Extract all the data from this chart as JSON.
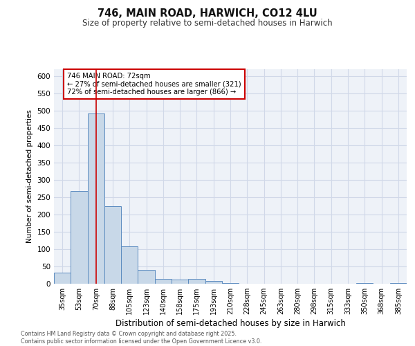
{
  "title": "746, MAIN ROAD, HARWICH, CO12 4LU",
  "subtitle": "Size of property relative to semi-detached houses in Harwich",
  "xlabel": "Distribution of semi-detached houses by size in Harwich",
  "ylabel": "Number of semi-detached properties",
  "categories": [
    "35sqm",
    "53sqm",
    "70sqm",
    "88sqm",
    "105sqm",
    "123sqm",
    "140sqm",
    "158sqm",
    "175sqm",
    "193sqm",
    "210sqm",
    "228sqm",
    "245sqm",
    "263sqm",
    "280sqm",
    "298sqm",
    "315sqm",
    "333sqm",
    "350sqm",
    "368sqm",
    "385sqm"
  ],
  "values": [
    33,
    268,
    493,
    224,
    108,
    40,
    15,
    13,
    14,
    8,
    2,
    1,
    1,
    0,
    0,
    0,
    0,
    0,
    3,
    0,
    3
  ],
  "bar_color": "#c8d8e8",
  "bar_edge_color": "#5a8abf",
  "grid_color": "#d0d8e8",
  "background_color": "#eef2f8",
  "subject_bar_index": 2,
  "subject_line_color": "#cc0000",
  "annotation_line1": "746 MAIN ROAD: 72sqm",
  "annotation_line2": "← 27% of semi-detached houses are smaller (321)",
  "annotation_line3": "72% of semi-detached houses are larger (866) →",
  "annotation_box_color": "#cc0000",
  "footer_text": "Contains HM Land Registry data © Crown copyright and database right 2025.\nContains public sector information licensed under the Open Government Licence v3.0.",
  "ylim": [
    0,
    620
  ],
  "yticks": [
    0,
    50,
    100,
    150,
    200,
    250,
    300,
    350,
    400,
    450,
    500,
    550,
    600
  ]
}
